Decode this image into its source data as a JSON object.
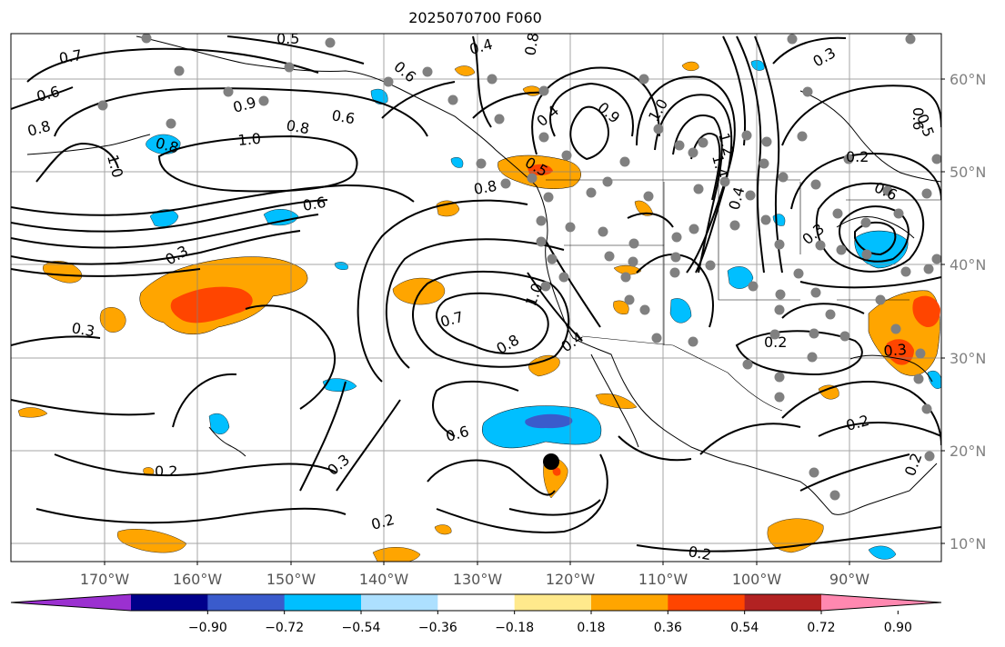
{
  "title": "2025070700 F060",
  "longitude_labels": [
    "170°W",
    "160°W",
    "150°W",
    "140°W",
    "130°W",
    "120°W",
    "110°W",
    "100°W",
    "90°W"
  ],
  "latitude_labels": [
    "60°N",
    "50°N",
    "40°N",
    "30°N",
    "20°N",
    "10°N"
  ],
  "colorbar": {
    "tick_labels": [
      "−0.90",
      "−0.72",
      "−0.54",
      "−0.36",
      "−0.18",
      "0.18",
      "0.36",
      "0.54",
      "0.72",
      "0.90"
    ],
    "colors": [
      "#9b30d0",
      "#00008b",
      "#3a5bcc",
      "#00bfff",
      "#ade0ff",
      "#ffffff",
      "#ffe98c",
      "#ffa500",
      "#ff4500",
      "#b22222",
      "#ff88b0"
    ]
  },
  "contour_labels": [
    {
      "text": "0.7"
    },
    {
      "text": "0.6"
    },
    {
      "text": "0.8"
    },
    {
      "text": "0.5"
    },
    {
      "text": "0.4"
    },
    {
      "text": "0.6"
    },
    {
      "text": "0.8"
    },
    {
      "text": "0.9"
    },
    {
      "text": "0.6"
    },
    {
      "text": "0.8"
    },
    {
      "text": "1.0"
    },
    {
      "text": "1.0"
    },
    {
      "text": "0.8"
    },
    {
      "text": "0.6"
    },
    {
      "text": "0.3"
    },
    {
      "text": "0.3"
    },
    {
      "text": "0.7"
    },
    {
      "text": "1.0"
    },
    {
      "text": "0.8"
    },
    {
      "text": "0.4"
    },
    {
      "text": "0.5"
    },
    {
      "text": "0.8"
    },
    {
      "text": "0.4"
    },
    {
      "text": "0.9"
    },
    {
      "text": "1.0"
    },
    {
      "text": "1.2"
    },
    {
      "text": "1.4"
    },
    {
      "text": "0.6"
    },
    {
      "text": "0.3"
    },
    {
      "text": "0.2"
    },
    {
      "text": "0.6"
    },
    {
      "text": "0.5"
    },
    {
      "text": "0.2"
    },
    {
      "text": "0.3"
    },
    {
      "text": "0.2"
    },
    {
      "text": "0.6"
    },
    {
      "text": "0.3"
    },
    {
      "text": "0.2"
    },
    {
      "text": "0.2"
    },
    {
      "text": "0.2"
    },
    {
      "text": "0.2"
    },
    {
      "text": "0.3"
    },
    {
      "text": "0.4"
    }
  ],
  "map_features": {
    "shading_color_positive": "#ffa500",
    "shading_color_strong_positive": "#ff4500",
    "shading_color_negative": "#00bfff",
    "shading_color_strong_negative": "#3a5bcc",
    "contour_color": "#000000",
    "station_marker_color": "#808080",
    "storm_marker_color": "#000000",
    "grid_color": "#808080"
  }
}
